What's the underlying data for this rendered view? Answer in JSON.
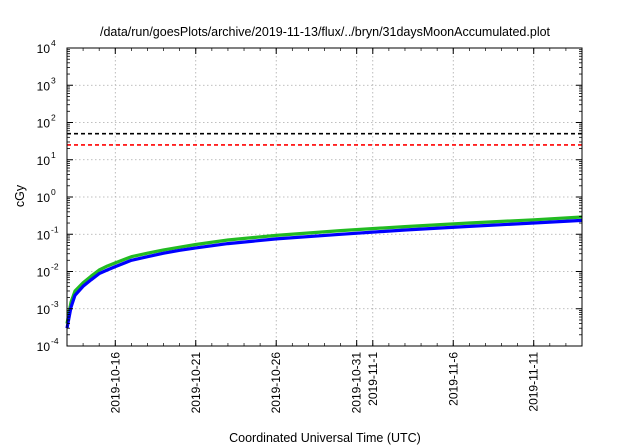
{
  "chart_data": {
    "type": "line",
    "title": "/data/run/goesPlots/archive/2019-11-13/flux/../bryn/31daysMoonAccumulated.plot",
    "xlabel": "Coordinated Universal Time (UTC)",
    "ylabel": "cGy",
    "y_scale": "log",
    "ylim": [
      0.0001,
      10000
    ],
    "xlim": [
      "2019-10-13",
      "2019-11-14"
    ],
    "grid": true,
    "y_ticks": [
      {
        "base": "10",
        "exp": "-4",
        "value": 0.0001
      },
      {
        "base": "10",
        "exp": "-3",
        "value": 0.001
      },
      {
        "base": "10",
        "exp": "-2",
        "value": 0.01
      },
      {
        "base": "10",
        "exp": "-1",
        "value": 0.1
      },
      {
        "base": "10",
        "exp": "0",
        "value": 1
      },
      {
        "base": "10",
        "exp": "1",
        "value": 10
      },
      {
        "base": "10",
        "exp": "2",
        "value": 100
      },
      {
        "base": "10",
        "exp": "3",
        "value": 1000
      },
      {
        "base": "10",
        "exp": "4",
        "value": 10000
      }
    ],
    "x_ticks": [
      {
        "date": "2019-10-16",
        "lines": [
          "2019-10-16"
        ]
      },
      {
        "date": "2019-10-21",
        "lines": [
          "2019-10-21"
        ]
      },
      {
        "date": "2019-10-26",
        "lines": [
          "2019-10-26"
        ]
      },
      {
        "date": "2019-10-31",
        "lines": [
          "2019-10-31"
        ]
      },
      {
        "date": "2019-11-01",
        "lines": [
          "2019-11-1"
        ]
      },
      {
        "date": "2019-11-06",
        "lines": [
          "2019-11-6"
        ]
      },
      {
        "date": "2019-11-11",
        "lines": [
          "2019-11-11"
        ]
      }
    ],
    "hlines": [
      {
        "y": 50,
        "color": "#000000"
      },
      {
        "y": 25,
        "color": "#ff0000"
      }
    ],
    "series": [
      {
        "color": "#22bb22",
        "x": [
          "2019-10-13",
          "2019-10-13T06:00",
          "2019-10-13T12:00",
          "2019-10-14",
          "2019-10-14T12:00",
          "2019-10-15",
          "2019-10-15T12:00",
          "2019-10-16",
          "2019-10-17",
          "2019-10-18",
          "2019-10-19",
          "2019-10-20",
          "2019-10-21",
          "2019-10-23",
          "2019-10-26",
          "2019-10-30",
          "2019-11-03",
          "2019-11-07",
          "2019-11-11",
          "2019-11-14"
        ],
        "y": [
          0.0004,
          0.0015,
          0.003,
          0.005,
          0.0075,
          0.011,
          0.014,
          0.017,
          0.025,
          0.031,
          0.038,
          0.045,
          0.053,
          0.07,
          0.093,
          0.125,
          0.16,
          0.2,
          0.245,
          0.29
        ]
      },
      {
        "color": "#0000ff",
        "x": [
          "2019-10-13",
          "2019-10-13T06:00",
          "2019-10-13T12:00",
          "2019-10-14",
          "2019-10-14T12:00",
          "2019-10-15",
          "2019-10-15T12:00",
          "2019-10-16",
          "2019-10-17",
          "2019-10-18",
          "2019-10-19",
          "2019-10-20",
          "2019-10-21",
          "2019-10-23",
          "2019-10-26",
          "2019-10-30",
          "2019-11-03",
          "2019-11-07",
          "2019-11-11",
          "2019-11-14"
        ],
        "y": [
          0.0003,
          0.0011,
          0.0023,
          0.004,
          0.006,
          0.0088,
          0.011,
          0.0135,
          0.02,
          0.025,
          0.031,
          0.037,
          0.043,
          0.056,
          0.075,
          0.1,
          0.13,
          0.162,
          0.2,
          0.235
        ]
      }
    ]
  }
}
